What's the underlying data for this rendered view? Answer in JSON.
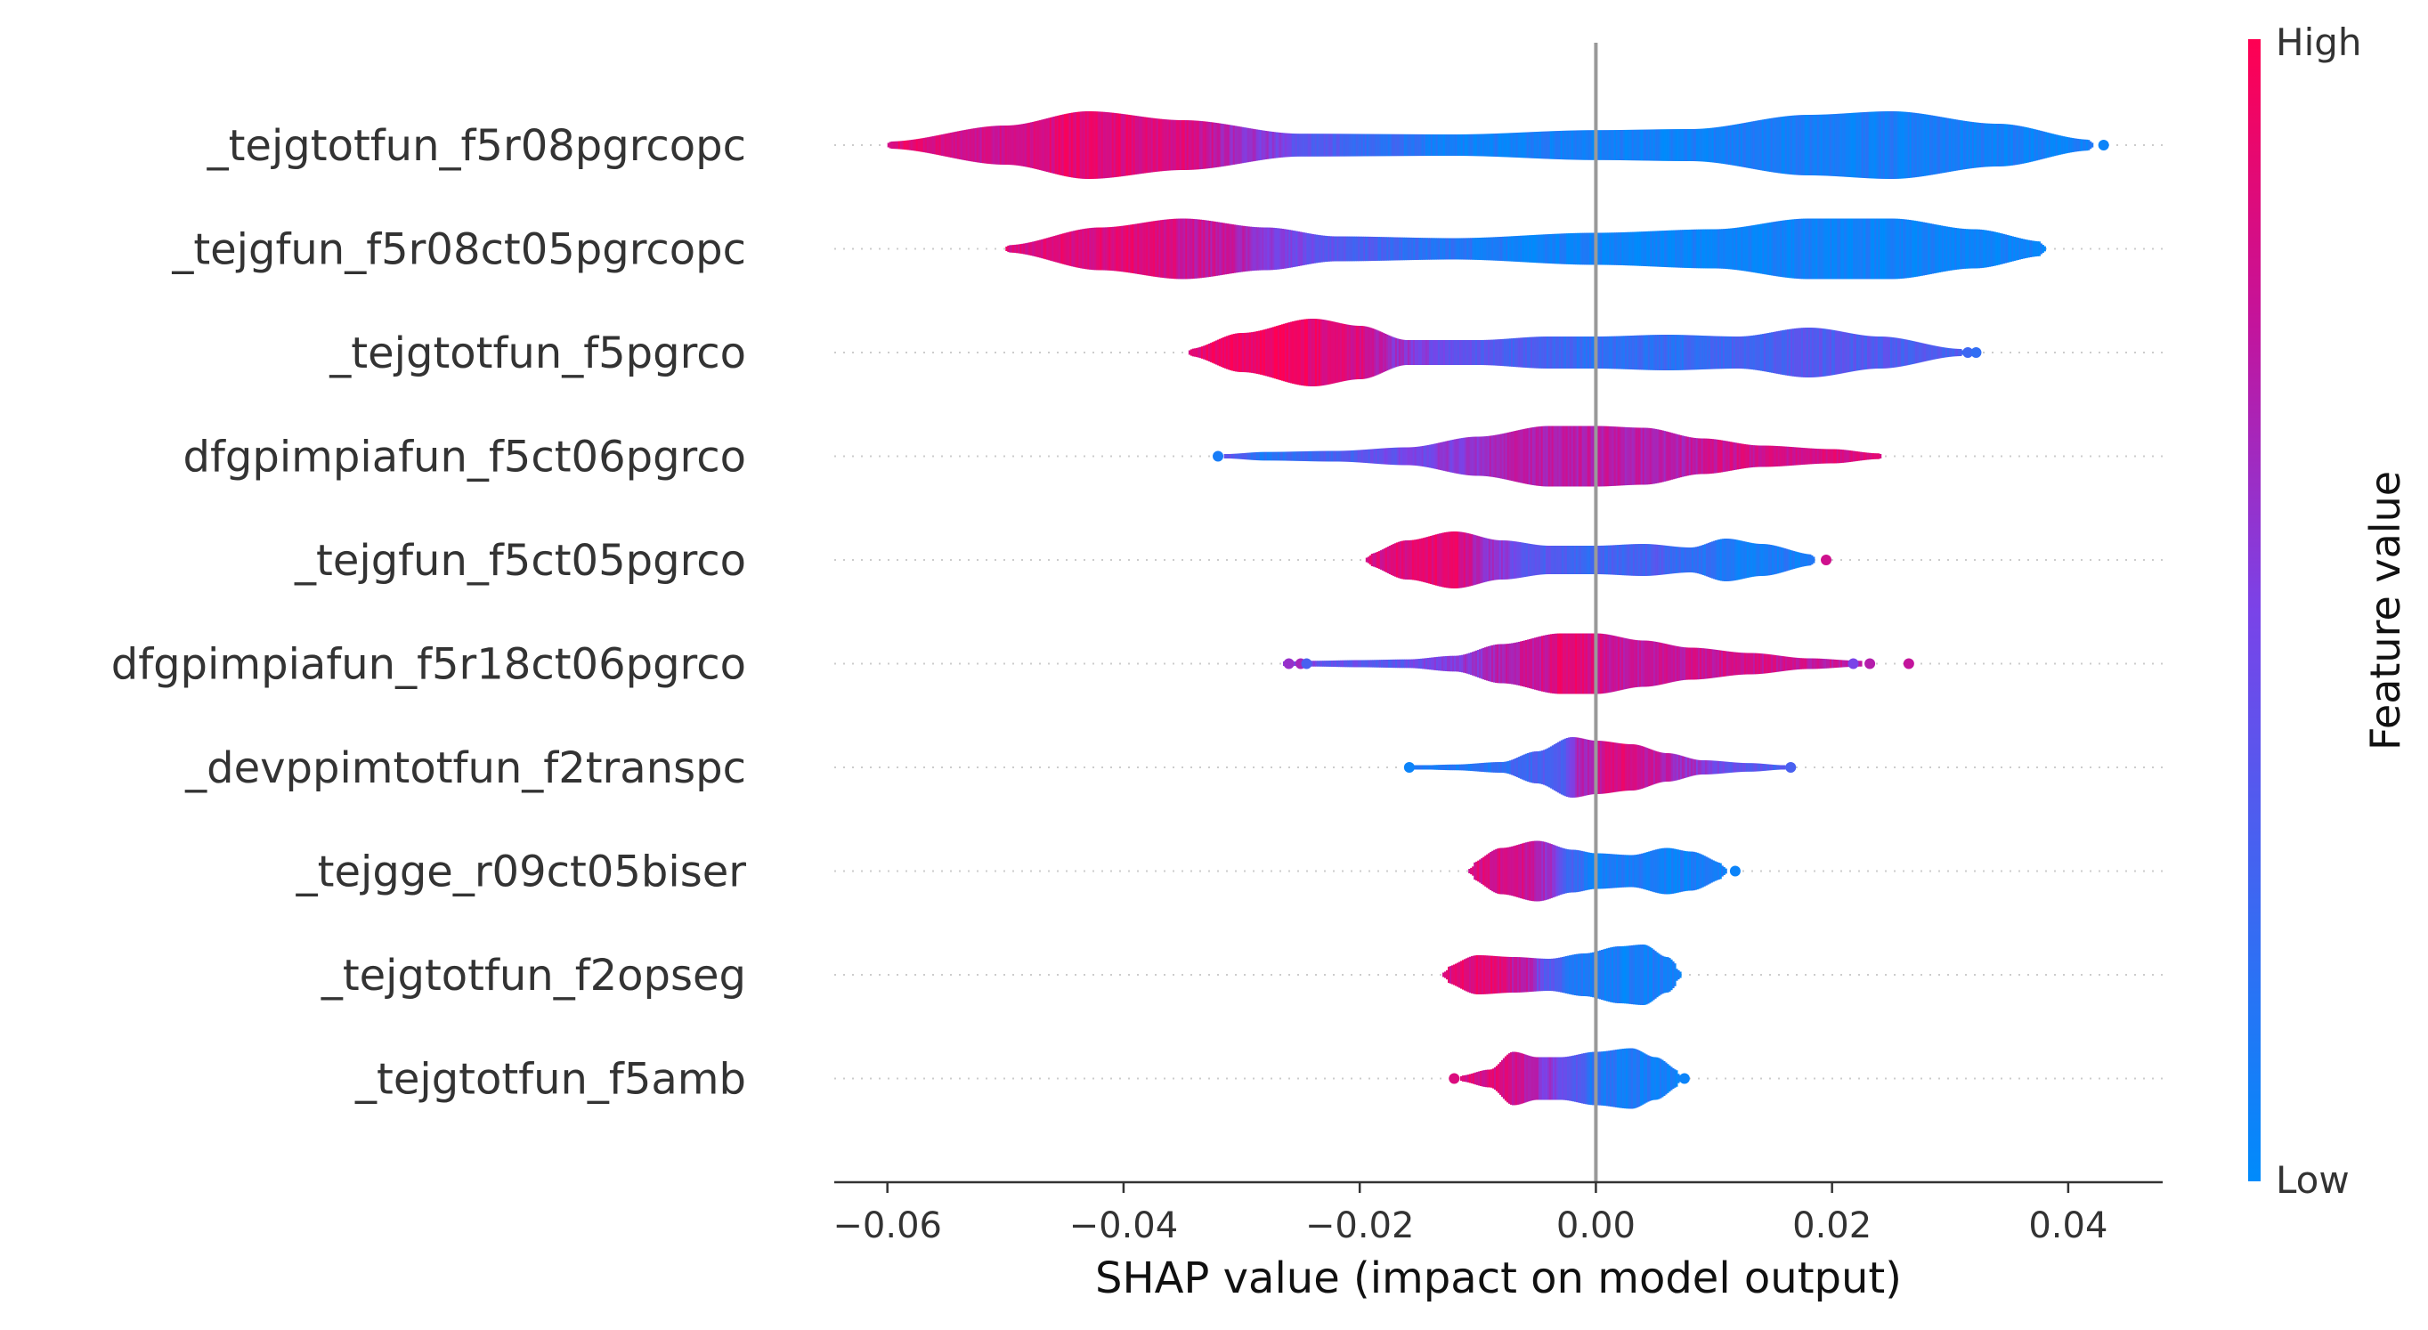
{
  "chart_data": {
    "type": "violin",
    "xlabel": "SHAP value (impact on model output)",
    "xlim": [
      -0.0645,
      0.048
    ],
    "x_ticks": [
      -0.06,
      -0.04,
      -0.02,
      0.0,
      0.02,
      0.04
    ],
    "x_tick_labels": [
      "−0.06",
      "−0.04",
      "−0.02",
      "0.00",
      "0.02",
      "0.04"
    ],
    "zero_line": 0.0,
    "colorbar": {
      "label": "Feature value",
      "high_label": "High",
      "low_label": "Low",
      "high_color": "#ff0052",
      "low_color": "#008bfb"
    },
    "features": [
      {
        "name": "_tejgtotfun_f5r08pgrcopc",
        "min": -0.06,
        "max": 0.042,
        "outliers": [
          {
            "x": 0.043,
            "v": 0.05
          }
        ],
        "width_profile": [
          [
            -0.06,
            0.1
          ],
          [
            -0.05,
            0.55
          ],
          [
            -0.043,
            0.95
          ],
          [
            -0.035,
            0.7
          ],
          [
            -0.025,
            0.32
          ],
          [
            -0.012,
            0.3
          ],
          [
            0.0,
            0.42
          ],
          [
            0.008,
            0.45
          ],
          [
            0.018,
            0.85
          ],
          [
            0.025,
            0.95
          ],
          [
            0.034,
            0.6
          ],
          [
            0.042,
            0.15
          ]
        ],
        "color_profile": [
          [
            -0.06,
            0.9
          ],
          [
            -0.053,
            0.8
          ],
          [
            -0.043,
            0.9
          ],
          [
            -0.035,
            0.85
          ],
          [
            -0.028,
            0.55
          ],
          [
            -0.024,
            0.35
          ],
          [
            -0.018,
            0.2
          ],
          [
            -0.012,
            0.08
          ],
          [
            0.0,
            0.07
          ],
          [
            0.02,
            0.1
          ],
          [
            0.042,
            0.07
          ]
        ]
      },
      {
        "name": "_tejgfun_f5r08ct05pgrcopc",
        "min": -0.05,
        "max": 0.038,
        "outliers": [],
        "width_profile": [
          [
            -0.05,
            0.1
          ],
          [
            -0.042,
            0.6
          ],
          [
            -0.035,
            0.85
          ],
          [
            -0.028,
            0.6
          ],
          [
            -0.022,
            0.35
          ],
          [
            -0.012,
            0.3
          ],
          [
            0.0,
            0.45
          ],
          [
            0.01,
            0.55
          ],
          [
            0.018,
            0.85
          ],
          [
            0.025,
            0.85
          ],
          [
            0.032,
            0.55
          ],
          [
            0.038,
            0.2
          ]
        ],
        "color_profile": [
          [
            -0.05,
            0.85
          ],
          [
            -0.04,
            0.88
          ],
          [
            -0.032,
            0.75
          ],
          [
            -0.025,
            0.45
          ],
          [
            -0.02,
            0.3
          ],
          [
            -0.012,
            0.15
          ],
          [
            -0.005,
            0.06
          ],
          [
            0.0,
            0.04
          ],
          [
            0.02,
            0.06
          ],
          [
            0.038,
            0.05
          ]
        ]
      },
      {
        "name": "_tejgtotfun_f5pgrco",
        "min": -0.0345,
        "max": 0.031,
        "outliers": [
          {
            "x": 0.0315,
            "v": 0.25
          },
          {
            "x": 0.0322,
            "v": 0.2
          }
        ],
        "width_profile": [
          [
            -0.0345,
            0.1
          ],
          [
            -0.03,
            0.55
          ],
          [
            -0.024,
            0.95
          ],
          [
            -0.02,
            0.75
          ],
          [
            -0.016,
            0.35
          ],
          [
            -0.01,
            0.35
          ],
          [
            -0.004,
            0.45
          ],
          [
            0.0,
            0.45
          ],
          [
            0.006,
            0.5
          ],
          [
            0.012,
            0.45
          ],
          [
            0.018,
            0.7
          ],
          [
            0.024,
            0.45
          ],
          [
            0.031,
            0.1
          ]
        ],
        "color_profile": [
          [
            -0.0345,
            0.9
          ],
          [
            -0.027,
            0.95
          ],
          [
            -0.02,
            0.85
          ],
          [
            -0.017,
            0.6
          ],
          [
            -0.012,
            0.4
          ],
          [
            -0.006,
            0.3
          ],
          [
            0.0,
            0.2
          ],
          [
            0.006,
            0.2
          ],
          [
            0.014,
            0.3
          ],
          [
            0.018,
            0.35
          ],
          [
            0.031,
            0.3
          ]
        ]
      },
      {
        "name": "dfgpimpiafun_f5ct06pgrco",
        "min": -0.0315,
        "max": 0.024,
        "outliers": [
          {
            "x": -0.032,
            "v": 0.1
          }
        ],
        "width_profile": [
          [
            -0.0315,
            0.06
          ],
          [
            -0.028,
            0.12
          ],
          [
            -0.022,
            0.15
          ],
          [
            -0.016,
            0.25
          ],
          [
            -0.01,
            0.55
          ],
          [
            -0.004,
            0.85
          ],
          [
            0.0,
            0.85
          ],
          [
            0.004,
            0.8
          ],
          [
            0.009,
            0.5
          ],
          [
            0.014,
            0.3
          ],
          [
            0.02,
            0.2
          ],
          [
            0.024,
            0.08
          ]
        ],
        "color_profile": [
          [
            -0.0315,
            0.4
          ],
          [
            -0.028,
            0.15
          ],
          [
            -0.022,
            0.3
          ],
          [
            -0.016,
            0.45
          ],
          [
            -0.012,
            0.55
          ],
          [
            -0.006,
            0.7
          ],
          [
            0.0,
            0.72
          ],
          [
            0.006,
            0.7
          ],
          [
            0.012,
            0.8
          ],
          [
            0.024,
            0.85
          ]
        ]
      },
      {
        "name": "_tejgfun_f5ct05pgrco",
        "min": -0.0195,
        "max": 0.0185,
        "outliers": [
          {
            "x": 0.0195,
            "v": 0.8
          }
        ],
        "width_profile": [
          [
            -0.0195,
            0.15
          ],
          [
            -0.016,
            0.55
          ],
          [
            -0.012,
            0.8
          ],
          [
            -0.008,
            0.55
          ],
          [
            -0.004,
            0.4
          ],
          [
            0.0,
            0.4
          ],
          [
            0.004,
            0.45
          ],
          [
            0.008,
            0.35
          ],
          [
            0.011,
            0.6
          ],
          [
            0.014,
            0.45
          ],
          [
            0.0185,
            0.15
          ]
        ],
        "color_profile": [
          [
            -0.0195,
            0.85
          ],
          [
            -0.012,
            0.9
          ],
          [
            -0.009,
            0.6
          ],
          [
            -0.005,
            0.35
          ],
          [
            0.0,
            0.25
          ],
          [
            0.005,
            0.3
          ],
          [
            0.008,
            0.2
          ],
          [
            0.011,
            0.1
          ],
          [
            0.0185,
            0.1
          ]
        ]
      },
      {
        "name": "dfgpimpiafun_f5r18ct06pgrco",
        "min": -0.0265,
        "max": 0.0225,
        "outliers": [
          {
            "x": -0.026,
            "v": 0.6
          },
          {
            "x": -0.025,
            "v": 0.65
          },
          {
            "x": -0.0245,
            "v": 0.3
          },
          {
            "x": 0.0218,
            "v": 0.5
          },
          {
            "x": 0.0232,
            "v": 0.7
          },
          {
            "x": 0.0265,
            "v": 0.75
          }
        ],
        "width_profile": [
          [
            -0.0265,
            0.04
          ],
          [
            -0.024,
            0.08
          ],
          [
            -0.02,
            0.1
          ],
          [
            -0.016,
            0.12
          ],
          [
            -0.012,
            0.22
          ],
          [
            -0.008,
            0.55
          ],
          [
            -0.003,
            0.85
          ],
          [
            0.0,
            0.85
          ],
          [
            0.004,
            0.65
          ],
          [
            0.008,
            0.45
          ],
          [
            0.013,
            0.3
          ],
          [
            0.018,
            0.15
          ],
          [
            0.0225,
            0.08
          ]
        ],
        "color_profile": [
          [
            -0.0265,
            0.55
          ],
          [
            -0.022,
            0.4
          ],
          [
            -0.018,
            0.35
          ],
          [
            -0.012,
            0.55
          ],
          [
            -0.006,
            0.75
          ],
          [
            -0.002,
            0.9
          ],
          [
            0.0,
            0.8
          ],
          [
            0.004,
            0.75
          ],
          [
            0.012,
            0.8
          ],
          [
            0.0225,
            0.75
          ]
        ]
      },
      {
        "name": "_devppimtotfun_f2transpc",
        "min": -0.0155,
        "max": 0.016,
        "outliers": [
          {
            "x": -0.0158,
            "v": 0.05
          },
          {
            "x": 0.0165,
            "v": 0.3
          }
        ],
        "width_profile": [
          [
            -0.0155,
            0.05
          ],
          [
            -0.012,
            0.08
          ],
          [
            -0.008,
            0.15
          ],
          [
            -0.005,
            0.45
          ],
          [
            -0.002,
            0.85
          ],
          [
            0.0,
            0.75
          ],
          [
            0.003,
            0.65
          ],
          [
            0.006,
            0.4
          ],
          [
            0.009,
            0.2
          ],
          [
            0.013,
            0.12
          ],
          [
            0.016,
            0.06
          ]
        ],
        "color_profile": [
          [
            -0.0155,
            0.1
          ],
          [
            -0.01,
            0.15
          ],
          [
            -0.006,
            0.25
          ],
          [
            -0.003,
            0.35
          ],
          [
            -0.001,
            0.7
          ],
          [
            0.002,
            0.85
          ],
          [
            0.005,
            0.75
          ],
          [
            0.008,
            0.6
          ],
          [
            0.012,
            0.4
          ],
          [
            0.016,
            0.3
          ]
        ]
      },
      {
        "name": "_tejgge_r09ct05biser",
        "min": -0.0108,
        "max": 0.011,
        "outliers": [
          {
            "x": 0.0118,
            "v": 0.05
          }
        ],
        "width_profile": [
          [
            -0.0108,
            0.2
          ],
          [
            -0.008,
            0.65
          ],
          [
            -0.005,
            0.85
          ],
          [
            -0.002,
            0.6
          ],
          [
            0.0,
            0.5
          ],
          [
            0.003,
            0.45
          ],
          [
            0.006,
            0.65
          ],
          [
            0.008,
            0.55
          ],
          [
            0.011,
            0.2
          ]
        ],
        "color_profile": [
          [
            -0.0108,
            0.85
          ],
          [
            -0.007,
            0.85
          ],
          [
            -0.004,
            0.6
          ],
          [
            -0.002,
            0.25
          ],
          [
            0.0,
            0.1
          ],
          [
            0.005,
            0.08
          ],
          [
            0.011,
            0.07
          ]
        ]
      },
      {
        "name": "_tejgtotfun_f2opseg",
        "min": -0.013,
        "max": 0.0072,
        "outliers": [],
        "width_profile": [
          [
            -0.013,
            0.2
          ],
          [
            -0.01,
            0.55
          ],
          [
            -0.007,
            0.5
          ],
          [
            -0.004,
            0.45
          ],
          [
            -0.001,
            0.6
          ],
          [
            0.002,
            0.8
          ],
          [
            0.004,
            0.85
          ],
          [
            0.006,
            0.5
          ],
          [
            0.0072,
            0.2
          ]
        ],
        "color_profile": [
          [
            -0.013,
            0.85
          ],
          [
            -0.009,
            0.9
          ],
          [
            -0.006,
            0.7
          ],
          [
            -0.004,
            0.35
          ],
          [
            -0.002,
            0.15
          ],
          [
            0.0,
            0.08
          ],
          [
            0.0072,
            0.08
          ]
        ]
      },
      {
        "name": "_tejgtotfun_f5amb",
        "min": -0.0115,
        "max": 0.0072,
        "outliers": [
          {
            "x": -0.012,
            "v": 0.85
          },
          {
            "x": 0.0075,
            "v": 0.05
          }
        ],
        "width_profile": [
          [
            -0.0115,
            0.08
          ],
          [
            -0.009,
            0.25
          ],
          [
            -0.007,
            0.75
          ],
          [
            -0.005,
            0.6
          ],
          [
            -0.003,
            0.6
          ],
          [
            0.0,
            0.75
          ],
          [
            0.003,
            0.85
          ],
          [
            0.005,
            0.6
          ],
          [
            0.0072,
            0.2
          ]
        ],
        "color_profile": [
          [
            -0.0115,
            0.85
          ],
          [
            -0.008,
            0.85
          ],
          [
            -0.006,
            0.75
          ],
          [
            -0.004,
            0.55
          ],
          [
            -0.002,
            0.35
          ],
          [
            0.0,
            0.15
          ],
          [
            0.003,
            0.1
          ],
          [
            0.0072,
            0.08
          ]
        ]
      }
    ]
  }
}
